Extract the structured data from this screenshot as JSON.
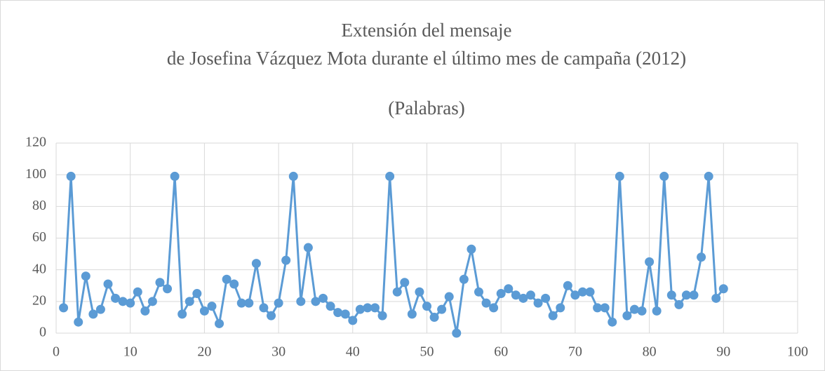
{
  "chart_data": {
    "type": "line",
    "title": [
      "Extensión del mensaje",
      "de Josefina Vázquez Mota durante el último mes de campaña (2012)"
    ],
    "subtitle": "(Palabras)",
    "x": [
      1,
      2,
      3,
      4,
      5,
      6,
      7,
      8,
      9,
      10,
      11,
      12,
      13,
      14,
      15,
      16,
      17,
      18,
      19,
      20,
      21,
      22,
      23,
      24,
      25,
      26,
      27,
      28,
      29,
      30,
      31,
      32,
      33,
      34,
      35,
      36,
      37,
      38,
      39,
      40,
      41,
      42,
      43,
      44,
      45,
      46,
      47,
      48,
      49,
      50,
      51,
      52,
      53,
      54,
      55,
      56,
      57,
      58,
      59,
      60,
      61,
      62,
      63,
      64,
      65,
      66,
      67,
      68,
      69,
      70,
      71,
      72,
      73,
      74,
      75,
      76,
      77,
      78,
      79,
      80,
      81,
      82,
      83,
      84,
      85,
      86,
      87,
      88,
      89,
      90
    ],
    "series": [
      {
        "color": "#5b9bd5",
        "values": [
          16,
          99,
          7,
          36,
          12,
          15,
          31,
          22,
          20,
          19,
          26,
          14,
          20,
          32,
          28,
          99,
          12,
          20,
          25,
          14,
          17,
          6,
          34,
          31,
          19,
          19,
          44,
          16,
          11,
          19,
          46,
          99,
          20,
          54,
          20,
          22,
          17,
          13,
          12,
          8,
          15,
          16,
          16,
          11,
          99,
          26,
          32,
          12,
          26,
          17,
          10,
          15,
          23,
          0,
          34,
          53,
          26,
          19,
          16,
          25,
          28,
          24,
          22,
          24,
          19,
          22,
          11,
          16,
          30,
          24,
          26,
          26,
          16,
          16,
          7,
          99,
          11,
          15,
          14,
          45,
          14,
          99,
          24,
          18,
          24,
          24,
          48,
          99,
          22,
          28
        ]
      }
    ],
    "xlim": [
      0,
      100
    ],
    "xticks": [
      0,
      10,
      20,
      30,
      40,
      50,
      60,
      70,
      80,
      90,
      100
    ],
    "ylim": [
      0,
      120
    ],
    "yticks": [
      0,
      20,
      40,
      60,
      80,
      100,
      120
    ],
    "grid": true
  }
}
